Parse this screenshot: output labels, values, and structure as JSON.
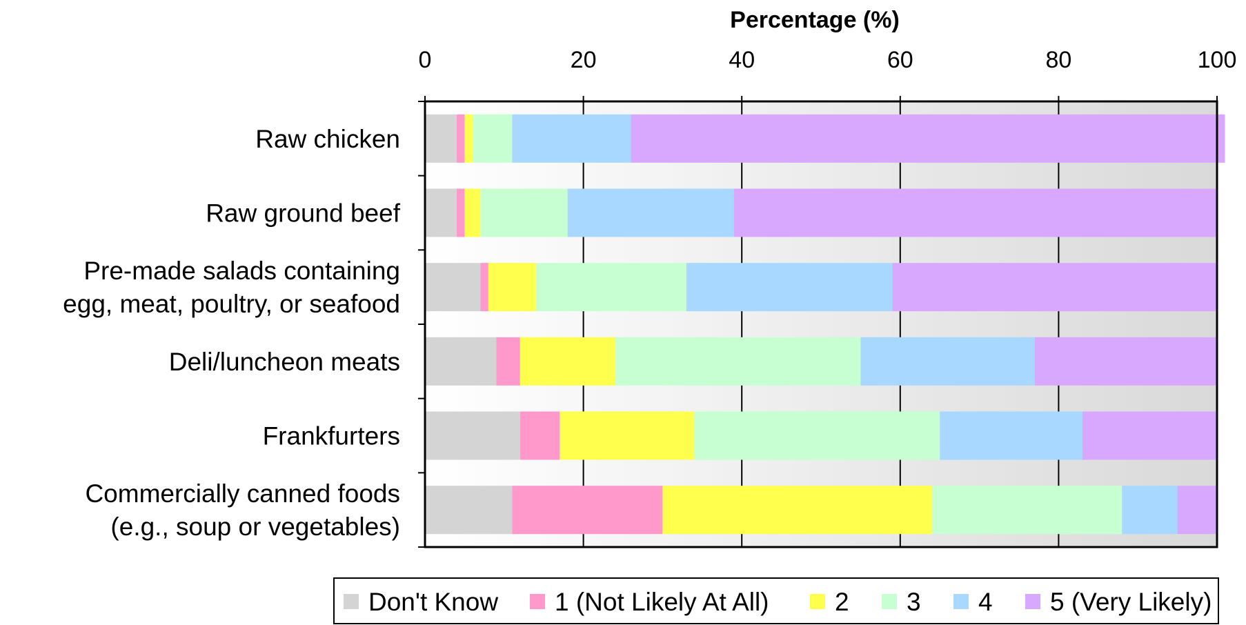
{
  "chart_data": {
    "type": "bar",
    "orientation": "horizontal",
    "stacked": true,
    "xlabel": "Percentage (%)",
    "xlabel_position": "top",
    "xlim": [
      0,
      100
    ],
    "xticks": [
      "0",
      "20",
      "40",
      "60",
      "80",
      "100"
    ],
    "grid": true,
    "legend_position": "bottom",
    "categories": [
      [
        "Raw chicken"
      ],
      [
        "Raw ground beef"
      ],
      [
        "Pre-made salads containing",
        "egg, meat, poultry, or seafood"
      ],
      [
        "Deli/luncheon meats"
      ],
      [
        "Frankfurters"
      ],
      [
        "Commercially canned foods",
        "(e.g., soup or vegetables)"
      ]
    ],
    "series": [
      {
        "name": "Don't Know",
        "color": "#d4d4d4",
        "values": [
          4,
          4,
          7,
          9,
          12,
          11
        ]
      },
      {
        "name": "1 (Not Likely At All)",
        "color": "#ff99cc",
        "values": [
          1,
          1,
          1,
          3,
          5,
          19
        ]
      },
      {
        "name": "2",
        "color": "#ffff4d",
        "values": [
          1,
          2,
          6,
          12,
          17,
          34
        ]
      },
      {
        "name": "3",
        "color": "#c8ffd2",
        "values": [
          5,
          11,
          19,
          31,
          31,
          24
        ]
      },
      {
        "name": "4",
        "color": "#a8d8ff",
        "values": [
          15,
          21,
          26,
          22,
          18,
          7
        ]
      },
      {
        "name": "5 (Very Likely)",
        "color": "#d8a8ff",
        "values": [
          75,
          61,
          41,
          23,
          17,
          5
        ]
      }
    ]
  }
}
